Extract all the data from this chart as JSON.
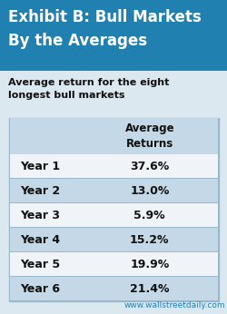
{
  "title_line1": "Exhibit B: Bull Markets",
  "title_line2": "By the Averages",
  "subtitle": "Average return for the eight\nlongest bull markets",
  "col_header": "Average\nReturns",
  "rows": [
    "Year 1",
    "Year 2",
    "Year 3",
    "Year 4",
    "Year 5",
    "Year 6"
  ],
  "values": [
    "37.6%",
    "13.0%",
    "5.9%",
    "15.2%",
    "19.9%",
    "21.4%"
  ],
  "header_bg": "#2080b0",
  "header_text": "#ffffff",
  "table_border": "#9ab8cc",
  "row_odd_bg": "#f0f4f8",
  "row_even_bg": "#c5d8e8",
  "table_header_bg": "#c5d8e8",
  "footer_text": "www.wallstreetdaily.com",
  "footer_color": "#2080b0",
  "text_color": "#111111",
  "fig_bg": "#dce8f0"
}
